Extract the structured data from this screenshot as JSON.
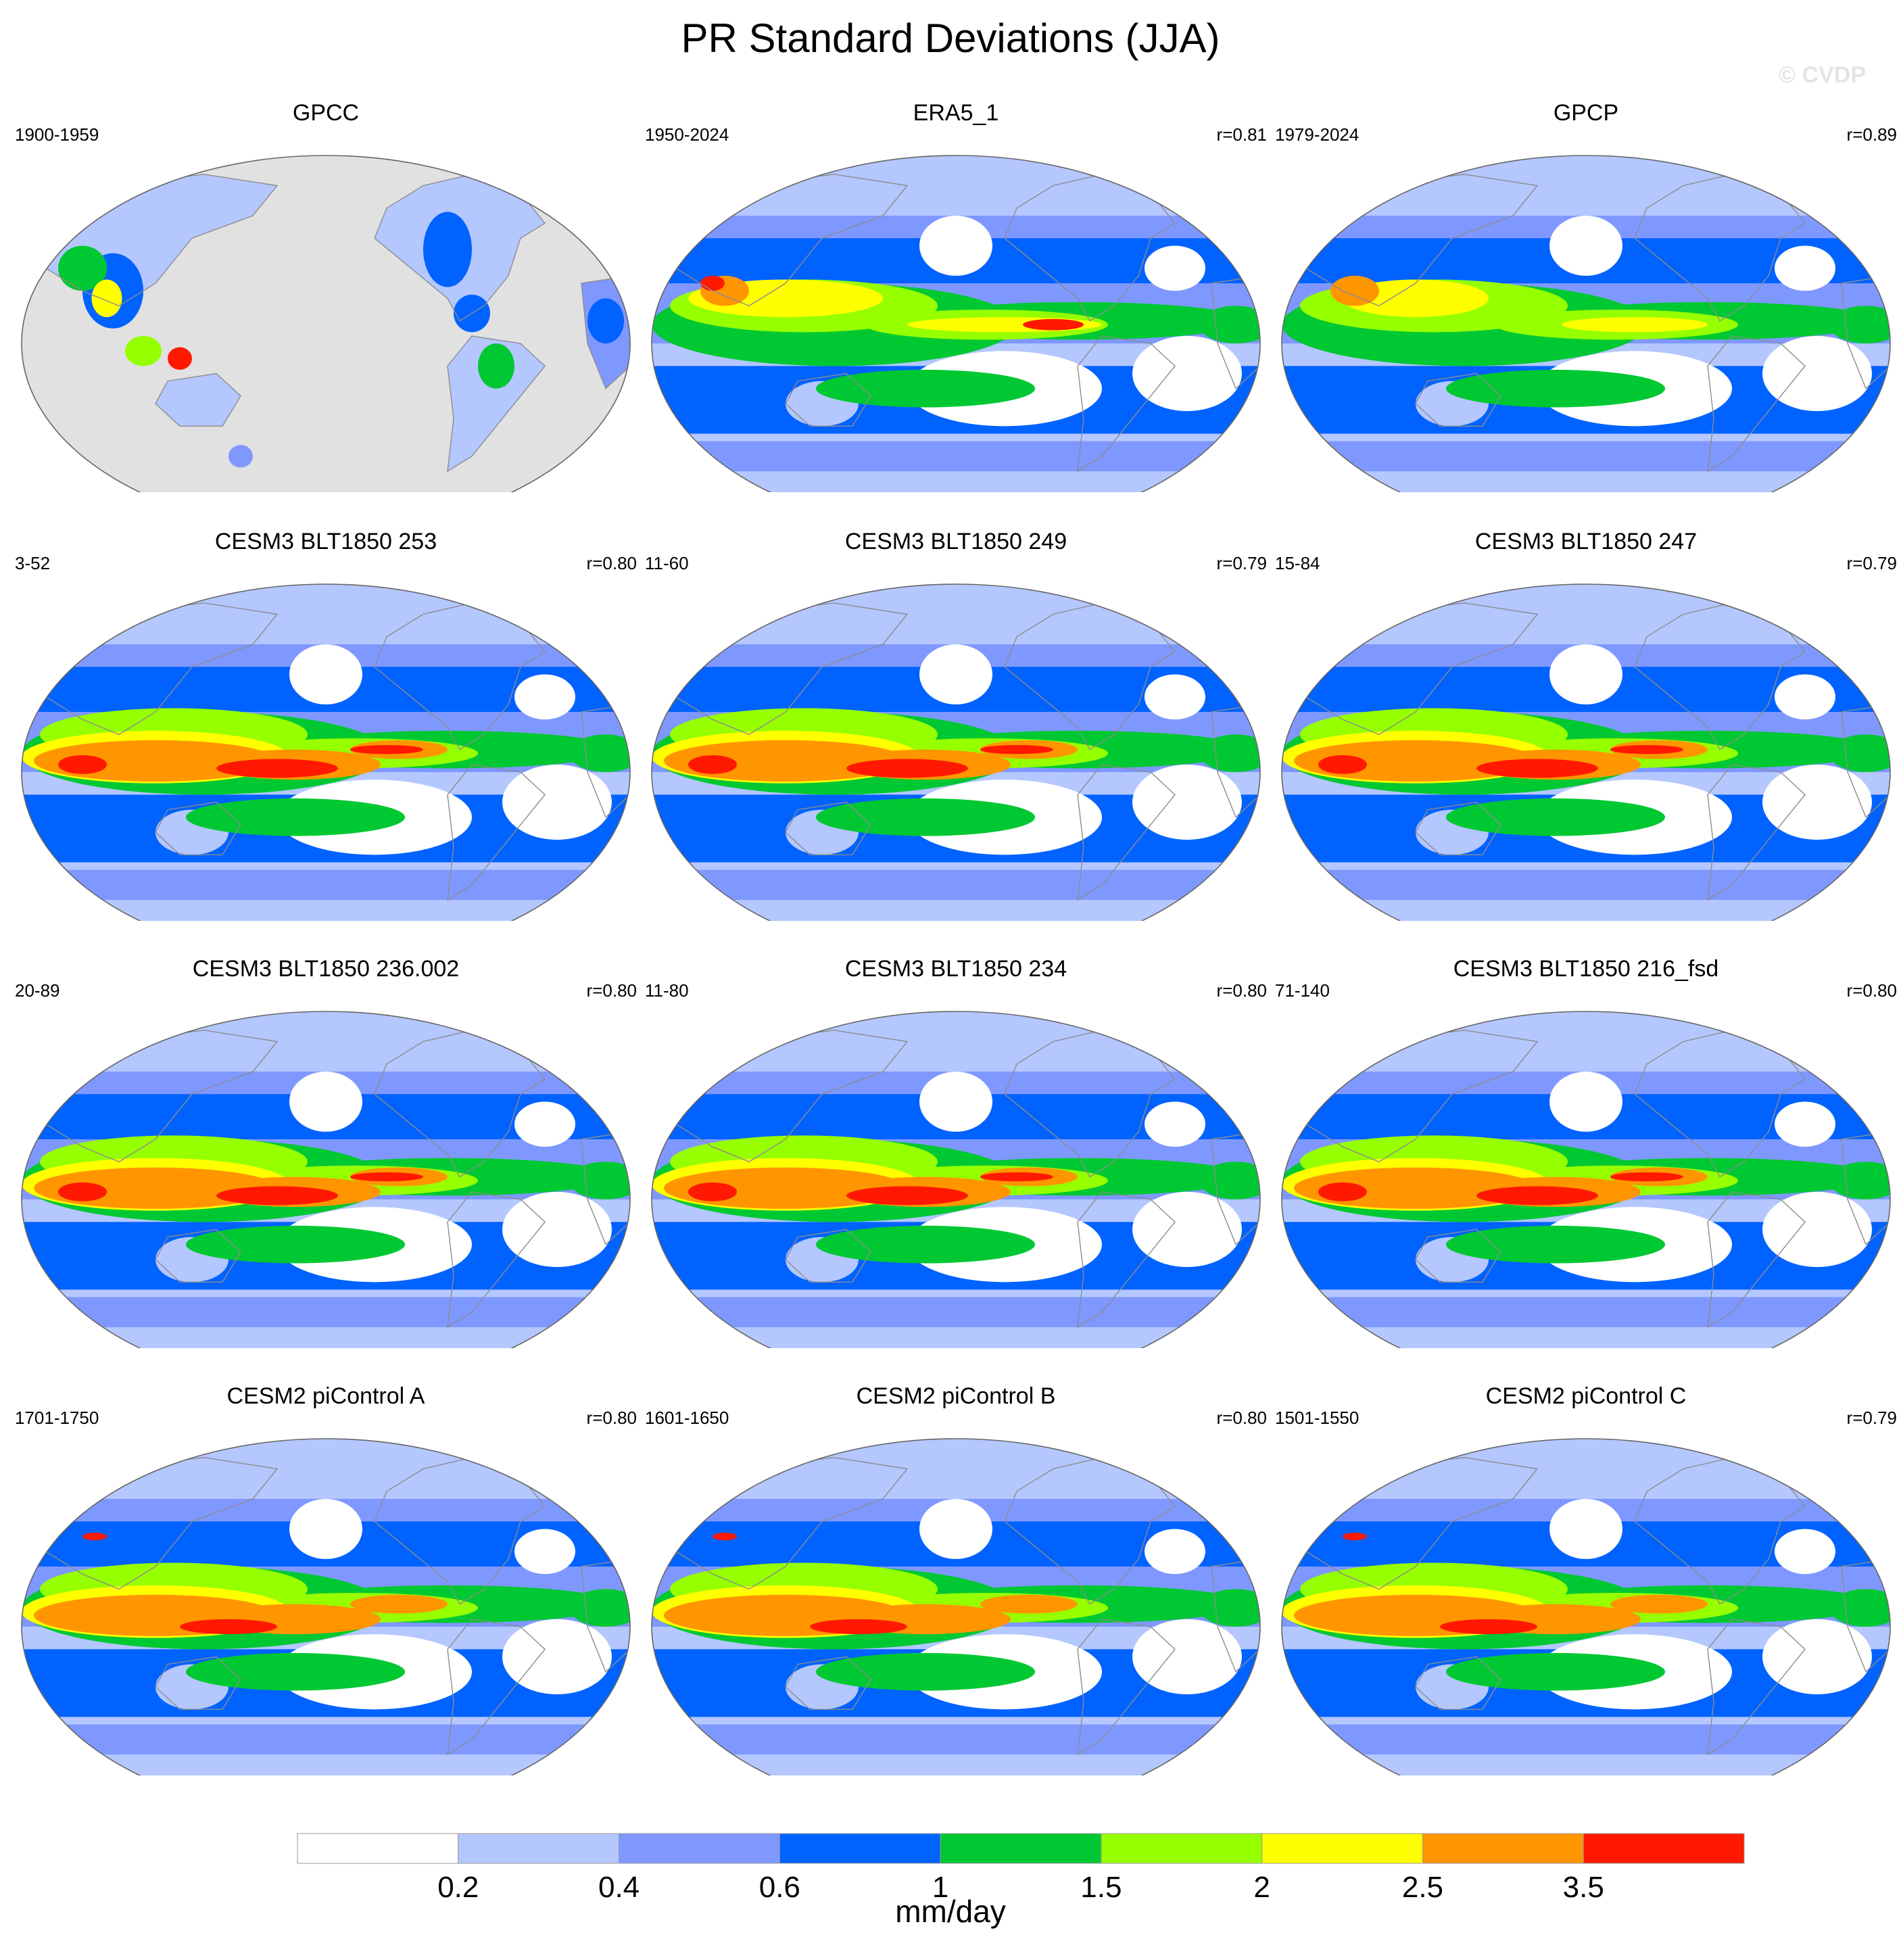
{
  "title": "PR Standard Deviations (JJA)",
  "watermark": "© CVDP",
  "panels": [
    {
      "title": "GPCC",
      "period": "1900-1959",
      "r": "",
      "style": "obs_land"
    },
    {
      "title": "ERA5_1",
      "period": "1950-2024",
      "r": "r=0.81",
      "style": "obs"
    },
    {
      "title": "GPCP",
      "period": "1979-2024",
      "r": "r=0.89",
      "style": "obs_smooth"
    },
    {
      "title": "CESM3 BLT1850 253",
      "period": "3-52",
      "r": "r=0.80",
      "style": "model"
    },
    {
      "title": "CESM3 BLT1850 249",
      "period": "11-60",
      "r": "r=0.79",
      "style": "model"
    },
    {
      "title": "CESM3 BLT1850 247",
      "period": "15-84",
      "r": "r=0.79",
      "style": "model"
    },
    {
      "title": "CESM3 BLT1850 236.002",
      "period": "20-89",
      "r": "r=0.80",
      "style": "model"
    },
    {
      "title": "CESM3 BLT1850 234",
      "period": "11-80",
      "r": "r=0.80",
      "style": "model"
    },
    {
      "title": "CESM3 BLT1850 216_fsd",
      "period": "71-140",
      "r": "r=0.80",
      "style": "model"
    },
    {
      "title": "CESM2 piControl A",
      "period": "1701-1750",
      "r": "r=0.80",
      "style": "model_cesm2"
    },
    {
      "title": "CESM2 piControl B",
      "period": "1601-1650",
      "r": "r=0.80",
      "style": "model_cesm2"
    },
    {
      "title": "CESM2 piControl C",
      "period": "1501-1550",
      "r": "r=0.79",
      "style": "model_cesm2"
    }
  ],
  "colorbar": {
    "units": "mm/day",
    "labels": [
      "0.2",
      "0.4",
      "0.6",
      "1",
      "1.5",
      "2",
      "2.5",
      "3.5"
    ],
    "colors": [
      "#ffffff",
      "#b4c7ff",
      "#7f98ff",
      "#0062ff",
      "#00c832",
      "#96ff00",
      "#ffff00",
      "#ff9600",
      "#ff1900"
    ]
  },
  "colors": {
    "missing": "#e1e1e1",
    "coast": "#8c8c8c"
  }
}
